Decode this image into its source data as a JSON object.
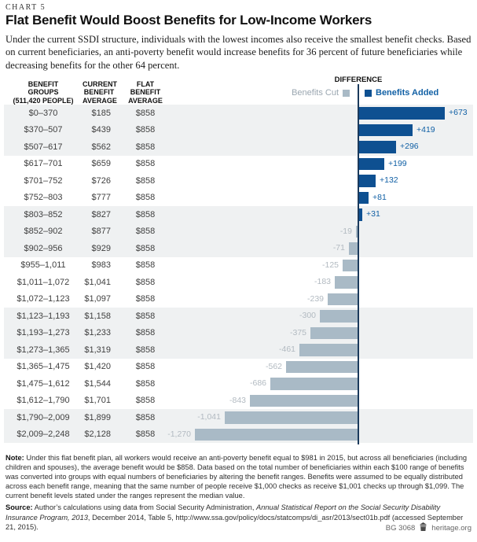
{
  "page": {
    "chart_label": "CHART 5",
    "title": "Flat Benefit Would Boost Benefits for Low-Income Workers",
    "description": "Under the current SSDI structure, individuals with the lowest incomes also receive the smallest benefit checks. Based on current beneficiaries, an anti-poverty benefit would increase benefits for 36 percent of future beneficiaries while decreasing benefits for the other 64 percent."
  },
  "table": {
    "columns": {
      "group": "BENEFIT\nGROUPS\n(511,420 PEOPLE)",
      "current": "CURRENT\nBENEFIT\nAVERAGE",
      "flat": "FLAT\nBENEFIT\nAVERAGE",
      "difference": "DIFFERENCE"
    },
    "legend": {
      "cut_label": "Benefits Cut",
      "added_label": "Benefits Added"
    },
    "rows": [
      {
        "group": "$0–370",
        "current": "$185",
        "flat": "$858",
        "diff": 673,
        "diff_label": "+673"
      },
      {
        "group": "$370–507",
        "current": "$439",
        "flat": "$858",
        "diff": 419,
        "diff_label": "+419"
      },
      {
        "group": "$507–617",
        "current": "$562",
        "flat": "$858",
        "diff": 296,
        "diff_label": "+296"
      },
      {
        "group": "$617–701",
        "current": "$659",
        "flat": "$858",
        "diff": 199,
        "diff_label": "+199"
      },
      {
        "group": "$701–752",
        "current": "$726",
        "flat": "$858",
        "diff": 132,
        "diff_label": "+132"
      },
      {
        "group": "$752–803",
        "current": "$777",
        "flat": "$858",
        "diff": 81,
        "diff_label": "+81"
      },
      {
        "group": "$803–852",
        "current": "$827",
        "flat": "$858",
        "diff": 31,
        "diff_label": "+31"
      },
      {
        "group": "$852–902",
        "current": "$877",
        "flat": "$858",
        "diff": -19,
        "diff_label": "-19"
      },
      {
        "group": "$902–956",
        "current": "$929",
        "flat": "$858",
        "diff": -71,
        "diff_label": "-71"
      },
      {
        "group": "$955–1,011",
        "current": "$983",
        "flat": "$858",
        "diff": -125,
        "diff_label": "-125"
      },
      {
        "group": "$1,011–1,072",
        "current": "$1,041",
        "flat": "$858",
        "diff": -183,
        "diff_label": "-183"
      },
      {
        "group": "$1,072–1,123",
        "current": "$1,097",
        "flat": "$858",
        "diff": -239,
        "diff_label": "-239"
      },
      {
        "group": "$1,123–1,193",
        "current": "$1,158",
        "flat": "$858",
        "diff": -300,
        "diff_label": "-300"
      },
      {
        "group": "$1,193–1,273",
        "current": "$1,233",
        "flat": "$858",
        "diff": -375,
        "diff_label": "-375"
      },
      {
        "group": "$1,273–1,365",
        "current": "$1,319",
        "flat": "$858",
        "diff": -461,
        "diff_label": "-461"
      },
      {
        "group": "$1,365–1,475",
        "current": "$1,420",
        "flat": "$858",
        "diff": -562,
        "diff_label": "-562"
      },
      {
        "group": "$1,475–1,612",
        "current": "$1,544",
        "flat": "$858",
        "diff": -686,
        "diff_label": "-686"
      },
      {
        "group": "$1,612–1,790",
        "current": "$1,701",
        "flat": "$858",
        "diff": -843,
        "diff_label": "-843"
      },
      {
        "group": "$1,790–2,009",
        "current": "$1,899",
        "flat": "$858",
        "diff": -1041,
        "diff_label": "-1,041"
      },
      {
        "group": "$2,009–2,248",
        "current": "$2,128",
        "flat": "$858",
        "diff": -1270,
        "diff_label": "-1,270"
      }
    ]
  },
  "chart_data": {
    "type": "bar",
    "orientation": "horizontal",
    "title": "Flat Benefit Would Boost Benefits for Low-Income Workers",
    "subtitle": "Difference between current benefit average and flat benefit average, by benefit group (511,420 people)",
    "categories": [
      "$0–370",
      "$370–507",
      "$507–617",
      "$617–701",
      "$701–752",
      "$752–803",
      "$803–852",
      "$852–902",
      "$902–956",
      "$955–1,011",
      "$1,011–1,072",
      "$1,072–1,123",
      "$1,123–1,193",
      "$1,193–1,273",
      "$1,273–1,365",
      "$1,365–1,475",
      "$1,475–1,612",
      "$1,612–1,790",
      "$1,790–2,009",
      "$2,009–2,248"
    ],
    "series": [
      {
        "name": "Current Benefit Average",
        "values": [
          185,
          439,
          562,
          659,
          726,
          777,
          827,
          877,
          929,
          983,
          1041,
          1097,
          1158,
          1233,
          1319,
          1420,
          1544,
          1701,
          1899,
          2128
        ]
      },
      {
        "name": "Flat Benefit Average",
        "values": [
          858,
          858,
          858,
          858,
          858,
          858,
          858,
          858,
          858,
          858,
          858,
          858,
          858,
          858,
          858,
          858,
          858,
          858,
          858,
          858
        ]
      },
      {
        "name": "Difference",
        "values": [
          673,
          419,
          296,
          199,
          132,
          81,
          31,
          -19,
          -71,
          -125,
          -183,
          -239,
          -300,
          -375,
          -461,
          -562,
          -686,
          -843,
          -1041,
          -1270
        ]
      }
    ],
    "legend": [
      "Benefits Cut",
      "Benefits Added"
    ],
    "legend_position": "top",
    "xlim": [
      -1400,
      800
    ],
    "grid": false
  },
  "note": {
    "label": "Note:",
    "text": " Under this flat benefit plan, all workers would receive an anti-poverty benefit equal to $981 in 2015, but across all beneficiaries (including children and spouses), the average benefit would be $858. Data based on the total number of beneficiaries within each $100 range of benefits was converted into groups with equal numbers of beneficiaries by altering the benefit ranges. Benefits were assumed to be equally distributed across each benefit range, meaning that the same number of people receive $1,000 checks as receive $1,001 checks up through $1,099. The current benefit levels stated under the ranges represent the median value."
  },
  "source": {
    "label": "Source:",
    "pre": " Author’s calculations using data from Social Security Administration, ",
    "italic": "Annual Statistical Report on the Social Security Disability Insurance Program, 2013",
    "post": ", December 2014, Table 5, http://www.ssa.gov/policy/docs/statcomps/di_asr/2013/sect01b.pdf (accessed September 21, 2015)."
  },
  "footer": {
    "report_id": "BG 3068",
    "site": "heritage.org"
  },
  "colors": {
    "bar_positive": "#0e5091",
    "bar_negative": "#a9bac6",
    "axis": "#1b3a5c",
    "stripe": "#eff1f2",
    "label_positive": "#1160a5",
    "label_negative": "#b2bac1"
  }
}
